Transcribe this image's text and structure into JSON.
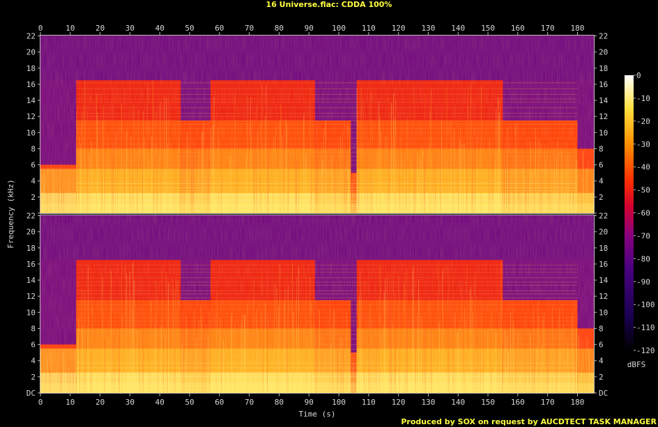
{
  "title": "16 Universe.flac: CDDA 100%",
  "footer": "Produced by SOX on request by AUCDTECT TASK MANAGER",
  "colorbar_unit": "dBFS",
  "chart_data": {
    "type": "heatmap",
    "title": "16 Universe.flac: CDDA 100%",
    "xlabel": "Time (s)",
    "ylabel": "Frequency (kHz)",
    "xlim": [
      0,
      185.5
    ],
    "ylim": [
      0,
      22.05
    ],
    "x_ticks": [
      0,
      10,
      20,
      30,
      40,
      50,
      60,
      70,
      80,
      90,
      100,
      110,
      120,
      130,
      140,
      150,
      160,
      170,
      180
    ],
    "y_tick_labels": [
      "DC",
      "2",
      "4",
      "6",
      "8",
      "10",
      "12",
      "14",
      "16",
      "18",
      "20",
      "22"
    ],
    "channels": 2,
    "colorbar": {
      "label": "dBFS",
      "range": [
        -120,
        0
      ],
      "ticks": [
        0,
        -10,
        -20,
        -30,
        -40,
        -50,
        -60,
        -70,
        -80,
        -90,
        -100,
        -110,
        -120
      ],
      "tick_labels": [
        "0",
        "-10",
        "-20",
        "-30",
        "-40",
        "-50",
        "-60",
        "-70",
        "-80",
        "-90",
        "-100",
        "-110",
        "-120"
      ],
      "colors": [
        "#000000",
        "#1a0050",
        "#4a0080",
        "#8a0080",
        "#d00030",
        "#ff3000",
        "#ff9000",
        "#ffe040",
        "#ffffff"
      ]
    },
    "segments": [
      {
        "t_start": 0,
        "t_end": 12,
        "content_top_khz": 6,
        "level": "low"
      },
      {
        "t_start": 12,
        "t_end": 47,
        "content_top_khz": 16.5,
        "level": "loud"
      },
      {
        "t_start": 47,
        "t_end": 57,
        "content_top_khz": 11.5,
        "level": "medium"
      },
      {
        "t_start": 57,
        "t_end": 92,
        "content_top_khz": 16.5,
        "level": "loud"
      },
      {
        "t_start": 92,
        "t_end": 104,
        "content_top_khz": 11.5,
        "level": "medium"
      },
      {
        "t_start": 104,
        "t_end": 106,
        "content_top_khz": 5,
        "level": "dip"
      },
      {
        "t_start": 106,
        "t_end": 155,
        "content_top_khz": 16.5,
        "level": "loud"
      },
      {
        "t_start": 155,
        "t_end": 180,
        "content_top_khz": 11.5,
        "level": "medium"
      },
      {
        "t_start": 180,
        "t_end": 185.5,
        "content_top_khz": 8,
        "level": "fade"
      }
    ]
  }
}
